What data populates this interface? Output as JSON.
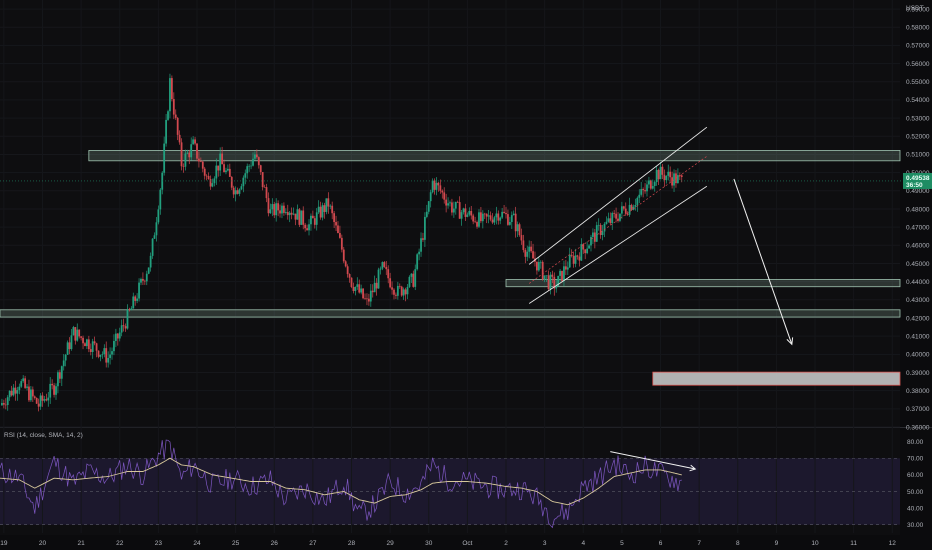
{
  "chart_data": {
    "type": "candlestick",
    "currency": "USDT",
    "price_axis": {
      "labels": [
        "0.59000",
        "0.58000",
        "0.57000",
        "0.56000",
        "0.55000",
        "0.54000",
        "0.53000",
        "0.52000",
        "0.51000",
        "0.50000",
        "0.49000",
        "0.48000",
        "0.47000",
        "0.46000",
        "0.45000",
        "0.44000",
        "0.43000",
        "0.42000",
        "0.41000",
        "0.40000",
        "0.39000",
        "0.38000",
        "0.37000",
        "0.36000"
      ],
      "values": [
        0.59,
        0.58,
        0.57,
        0.56,
        0.55,
        0.54,
        0.53,
        0.52,
        0.51,
        0.5,
        0.49,
        0.48,
        0.47,
        0.46,
        0.45,
        0.44,
        0.43,
        0.42,
        0.41,
        0.4,
        0.39,
        0.38,
        0.37,
        0.36
      ],
      "ylim": [
        0.36,
        0.595
      ]
    },
    "current_price": {
      "label_top": "0.49538",
      "label_bottom": "36:50",
      "value": 0.4954
    },
    "time_axis": {
      "labels": [
        "19",
        "20",
        "21",
        "22",
        "23",
        "24",
        "25",
        "26",
        "27",
        "28",
        "29",
        "30",
        "Oct",
        "2",
        "3",
        "4",
        "5",
        "6",
        "7",
        "8",
        "9",
        "10",
        "11",
        "12"
      ],
      "values": [
        0,
        1,
        2,
        3,
        4,
        5,
        6,
        7,
        8,
        9,
        10,
        11,
        12,
        13,
        14,
        15,
        16,
        17,
        18,
        19,
        20,
        21,
        22,
        23
      ],
      "xlim": [
        -0.1,
        23.2
      ],
      "last_candle_day": 17.55
    },
    "price_path": {
      "days": [
        -0.1,
        0.4,
        0.9,
        1.3,
        1.8,
        2.3,
        2.7,
        3.3,
        3.8,
        4.1,
        4.3,
        4.6,
        4.9,
        5.3,
        5.6,
        6.0,
        6.5,
        6.9,
        7.3,
        7.9,
        8.4,
        9.0,
        9.4,
        9.8,
        10.2,
        10.6,
        11.0,
        11.1,
        11.3,
        11.6,
        12.0,
        12.4,
        12.8,
        13.2,
        13.5,
        13.8,
        14.1,
        14.3,
        14.6,
        15.0,
        15.4,
        15.8,
        16.2,
        16.6,
        16.9,
        17.2,
        17.55
      ],
      "prices": [
        0.372,
        0.385,
        0.372,
        0.382,
        0.412,
        0.405,
        0.398,
        0.425,
        0.452,
        0.5,
        0.55,
        0.505,
        0.515,
        0.495,
        0.506,
        0.49,
        0.51,
        0.478,
        0.482,
        0.471,
        0.483,
        0.44,
        0.428,
        0.447,
        0.434,
        0.441,
        0.482,
        0.495,
        0.49,
        0.481,
        0.477,
        0.473,
        0.478,
        0.474,
        0.458,
        0.45,
        0.44,
        0.438,
        0.45,
        0.458,
        0.468,
        0.475,
        0.482,
        0.49,
        0.5,
        0.498,
        0.4954
      ]
    },
    "zones": [
      {
        "name": "resistance",
        "x": [
          2.2,
          23.2
        ],
        "y": [
          0.5065,
          0.5122
        ],
        "color": "#7f9c8d"
      },
      {
        "name": "support-1",
        "x": [
          13.0,
          23.2
        ],
        "y": [
          0.4372,
          0.4412
        ],
        "color": "#7f9c8d"
      },
      {
        "name": "support-2",
        "x": [
          -0.1,
          23.2
        ],
        "y": [
          0.4205,
          0.4245
        ],
        "color": "#7f9c8d"
      },
      {
        "name": "target",
        "x": [
          16.8,
          23.2
        ],
        "y": [
          0.383,
          0.3902
        ],
        "color": "#cfcfcf"
      }
    ],
    "channel": {
      "upper": [
        [
          13.6,
          0.4495
        ],
        [
          18.2,
          0.525
        ]
      ],
      "lower": [
        [
          13.6,
          0.428
        ],
        [
          18.2,
          0.4925
        ]
      ],
      "mid": [
        [
          13.6,
          0.439
        ],
        [
          18.2,
          0.509
        ]
      ]
    },
    "projection_arrow": {
      "from": [
        18.9,
        0.4965
      ],
      "to": [
        20.4,
        0.4055
      ]
    },
    "rsi": {
      "title": "RSI (14, close, SMA, 14, 2)",
      "labels": [
        "80.00",
        "70.00",
        "60.00",
        "50.00",
        "40.00",
        "30.00"
      ],
      "values": [
        80,
        70,
        60,
        50,
        40,
        30
      ],
      "ylim": [
        25,
        87
      ],
      "overbought": 70,
      "oversold": 30,
      "path_days": [
        -0.1,
        0.4,
        0.8,
        1.3,
        1.8,
        2.2,
        2.7,
        3.2,
        3.6,
        4.0,
        4.3,
        4.6,
        4.9,
        5.4,
        5.9,
        6.4,
        6.9,
        7.3,
        7.8,
        8.3,
        8.8,
        9.2,
        9.6,
        10.0,
        10.4,
        10.8,
        11.1,
        11.5,
        12.0,
        12.5,
        13.0,
        13.4,
        13.8,
        14.2,
        14.6,
        15.0,
        15.4,
        15.8,
        16.2,
        16.6,
        17.0,
        17.55
      ],
      "rsi_values": [
        62,
        58,
        40,
        68,
        55,
        62,
        58,
        66,
        60,
        72,
        78,
        58,
        66,
        54,
        58,
        53,
        57,
        45,
        52,
        44,
        56,
        36,
        42,
        56,
        49,
        54,
        66,
        57,
        56,
        53,
        51,
        52,
        46,
        35,
        38,
        53,
        58,
        67,
        60,
        65,
        61,
        55
      ],
      "sma_values": [
        58,
        57,
        52,
        58,
        57,
        58,
        59,
        62,
        62,
        66,
        70,
        66,
        65,
        60,
        58,
        56,
        56,
        52,
        51,
        48,
        50,
        45,
        43,
        47,
        48,
        51,
        55,
        56,
        56,
        55,
        53,
        52,
        50,
        44,
        42,
        46,
        52,
        59,
        61,
        63,
        63,
        60
      ],
      "divergence_arrow": {
        "from": [
          15.7,
          74
        ],
        "to": [
          17.9,
          63.5
        ]
      }
    }
  }
}
